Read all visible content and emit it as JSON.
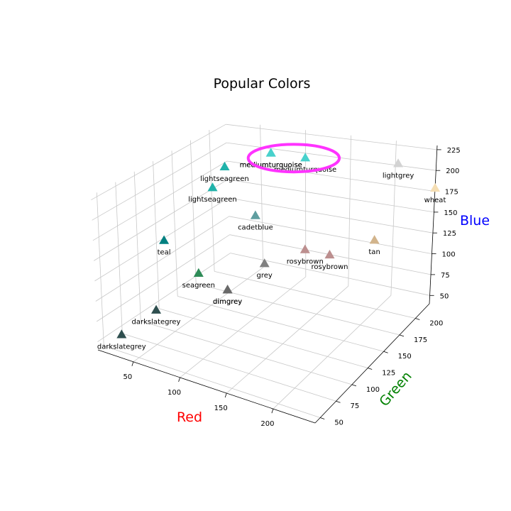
{
  "chart_data": {
    "type": "scatter3d",
    "title": "Popular Colors",
    "xlabel": "Red",
    "ylabel": "Green",
    "zlabel": "Blue",
    "xlabel_color": "#ff0000",
    "ylabel_color": "#008000",
    "zlabel_color": "#0000ff",
    "x_ticks": [
      50,
      100,
      150,
      200
    ],
    "y_ticks": [
      50,
      75,
      100,
      125,
      150,
      175,
      200
    ],
    "z_ticks": [
      50,
      75,
      100,
      125,
      150,
      175,
      200,
      225
    ],
    "marker": "triangle",
    "highlight": {
      "shape": "ellipse",
      "color": "#ff33ff"
    },
    "points": [
      {
        "label": "darkslategrey",
        "color": "#2f4f4f",
        "x": 47,
        "y": 79,
        "z": 79
      },
      {
        "label": "darkslategrey",
        "color": "#2f4f4f",
        "x": 27,
        "y": 56,
        "z": 56
      },
      {
        "label": "teal",
        "color": "#008080",
        "x": 18,
        "y": 128,
        "z": 128
      },
      {
        "label": "seagreen",
        "color": "#2e8b57",
        "x": 46,
        "y": 139,
        "z": 87
      },
      {
        "label": "lightseagreen",
        "color": "#20b2aa",
        "x": 32,
        "y": 178,
        "z": 170
      },
      {
        "label": "lightseagreen",
        "color": "#20b2aa",
        "x": 46,
        "y": 178,
        "z": 200
      },
      {
        "label": "mediumturquoise",
        "color": "#48d1cc",
        "x": 72,
        "y": 209,
        "z": 204
      },
      {
        "label": "mediumturquoise",
        "color": "#48d1cc",
        "x": 110,
        "y": 209,
        "z": 204
      },
      {
        "label": "mediumturquoise",
        "color": "#48d1cc",
        "x": 72,
        "y": 209,
        "z": 204
      },
      {
        "label": "cadetblue",
        "color": "#5f9ea0",
        "x": 95,
        "y": 158,
        "z": 160
      },
      {
        "label": "dimgrey",
        "color": "#696969",
        "x": 105,
        "y": 105,
        "z": 105
      },
      {
        "label": "dimgrey",
        "color": "#696969",
        "x": 105,
        "y": 105,
        "z": 105
      },
      {
        "label": "grey",
        "color": "#808080",
        "x": 128,
        "y": 128,
        "z": 128
      },
      {
        "label": "rosybrown",
        "color": "#bc8f8f",
        "x": 161,
        "y": 143,
        "z": 143
      },
      {
        "label": "rosybrown",
        "color": "#bc8f8f",
        "x": 188,
        "y": 143,
        "z": 143
      },
      {
        "label": "tan",
        "color": "#d2b48c",
        "x": 210,
        "y": 180,
        "z": 140
      },
      {
        "label": "wheat",
        "color": "#f5deb3",
        "x": 245,
        "y": 222,
        "z": 179
      },
      {
        "label": "lightgrey",
        "color": "#d3d3d3",
        "x": 211,
        "y": 211,
        "z": 211
      }
    ]
  }
}
